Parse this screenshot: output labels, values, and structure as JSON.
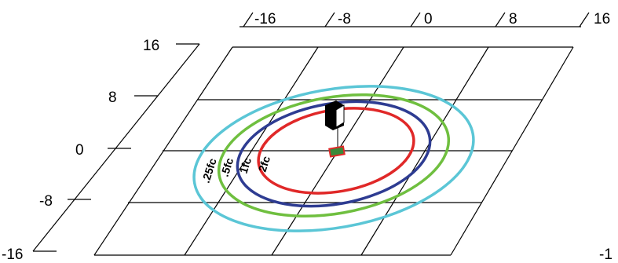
{
  "axes": {
    "top_labels": [
      "-16",
      "-8",
      "0",
      "8",
      "16"
    ],
    "left_labels": [
      "16",
      "8",
      "0",
      "-8",
      "-16"
    ],
    "right_edge_label": "-1"
  },
  "contours": [
    {
      "label": ".25fc",
      "color": "#5bc6d6"
    },
    {
      "label": ".5fc",
      "color": "#6fbf3f"
    },
    {
      "label": "1fc",
      "color": "#2e3c92"
    },
    {
      "label": "2fc",
      "color": "#e02828"
    }
  ],
  "colors": {
    "grid": "#000000",
    "fixture_body": "#000000",
    "marker_fill": "#3a8a3a",
    "marker_outline": "#e02828"
  },
  "icons": {
    "fixture": "light-fixture-icon",
    "marker": "target-marker-icon"
  }
}
